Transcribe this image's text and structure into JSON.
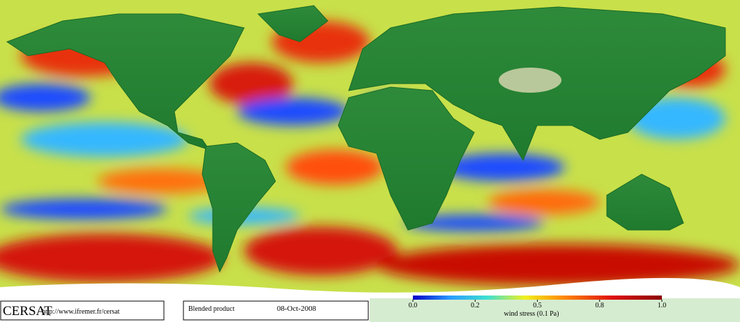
{
  "logo": {
    "name": "CERSAT",
    "url": "http://www.ifremer.fr/cersat"
  },
  "info": {
    "product": "Blended product",
    "date": "08-Oct-2008"
  },
  "colorbar": {
    "title": "wind stress (0.1 Pa)",
    "ticks": [
      {
        "value": 0,
        "label": "0.0"
      },
      {
        "value": 0.2,
        "label": "0.2"
      },
      {
        "value": 0.5,
        "label": "0.5"
      },
      {
        "value": 0.8,
        "label": "0.8"
      },
      {
        "value": 1,
        "label": "1.0"
      }
    ]
  }
}
